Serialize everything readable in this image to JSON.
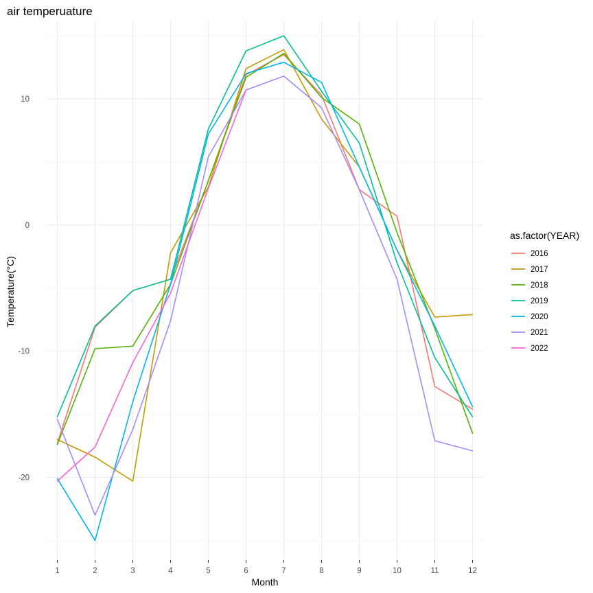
{
  "chart_data": {
    "type": "line",
    "title": "air temperuature",
    "xlabel": "Month",
    "ylabel": "Temperature(°C)",
    "x": [
      1,
      2,
      3,
      4,
      5,
      6,
      7,
      8,
      9,
      10,
      11,
      12
    ],
    "xlim": [
      0.7,
      12.3
    ],
    "ylim": [
      -26.5,
      16.2
    ],
    "y_ticks": [
      -20,
      -10,
      0,
      10
    ],
    "y_tick_labels": [
      "-20",
      "-10",
      "0",
      "10"
    ],
    "x_tick_labels": [
      "1",
      "2",
      "3",
      "4",
      "5",
      "6",
      "7",
      "8",
      "9",
      "10",
      "11",
      "12"
    ],
    "grid": true,
    "legend_title": "as.factor(YEAR)",
    "legend_position": "right",
    "series": [
      {
        "name": "2016",
        "color": "#F8766D",
        "values": [
          -17.3,
          -8.1,
          -5.2,
          -4.3,
          3.5,
          11.9,
          13.5,
          10.3,
          2.8,
          0.7,
          -12.8,
          -14.6
        ]
      },
      {
        "name": "2017",
        "color": "#C49A00",
        "values": [
          -17.0,
          -18.4,
          -20.3,
          -2.2,
          3.0,
          12.4,
          13.9,
          8.4,
          4.6,
          -2.0,
          -7.3,
          -7.1
        ]
      },
      {
        "name": "2018",
        "color": "#53B400",
        "values": [
          -17.4,
          -9.8,
          -9.6,
          -4.7,
          3.5,
          11.7,
          13.6,
          10.1,
          8.0,
          -0.6,
          -8.2,
          -16.5
        ]
      },
      {
        "name": "2019",
        "color": "#00C094",
        "values": [
          -15.2,
          -8.0,
          -5.2,
          -4.3,
          7.6,
          13.8,
          15.0,
          10.6,
          6.5,
          -3.0,
          -10.5,
          -15.2
        ]
      },
      {
        "name": "2020",
        "color": "#00B6EB",
        "values": [
          -20.1,
          -25.0,
          -14.0,
          -4.7,
          7.2,
          12.0,
          12.9,
          11.3,
          4.6,
          -2.0,
          -8.0,
          -14.4
        ]
      },
      {
        "name": "2021",
        "color": "#A58AFF",
        "values": [
          -15.4,
          -23.0,
          -16.2,
          -7.6,
          5.4,
          10.7,
          11.8,
          9.3,
          2.8,
          -4.3,
          -17.1,
          -17.9
        ]
      },
      {
        "name": "2022",
        "color": "#FB61D7",
        "values": [
          -20.3,
          -17.6,
          -10.9,
          -5.4,
          2.9,
          10.7,
          null,
          null,
          null,
          null,
          null,
          null
        ]
      }
    ]
  }
}
